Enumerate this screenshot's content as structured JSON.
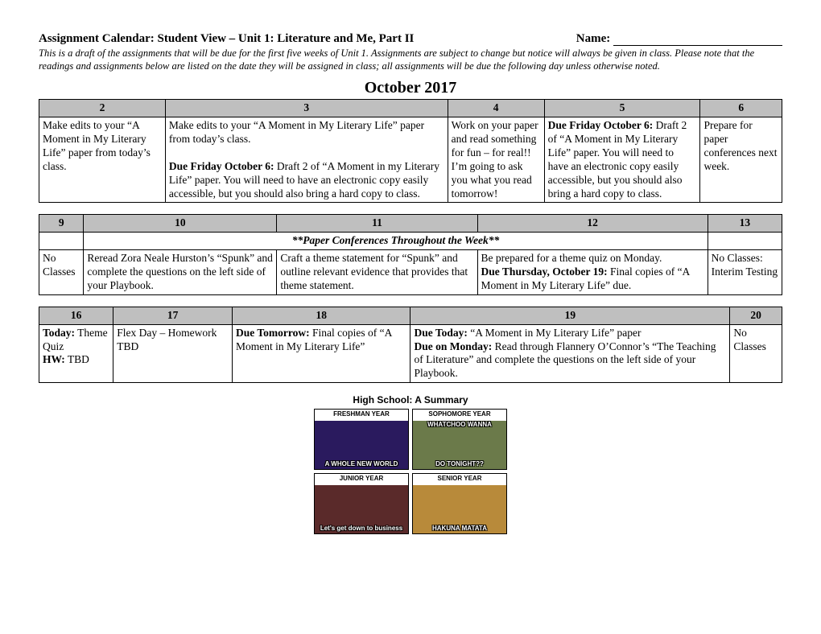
{
  "header": {
    "title": "Assignment Calendar: Student View – Unit 1: Literature and Me, Part II",
    "name_label": "Name:"
  },
  "intro": "This is a draft of the assignments that will be due for the first five weeks of Unit 1.  Assignments are subject to change but notice will always be given in class. Please note that the readings and assignments below are listed on the date they will be assigned in class; all assignments will be due the following day unless otherwise noted.",
  "month": "October 2017",
  "week1": {
    "col_widths": [
      "17%",
      "38%",
      "13%",
      "21%",
      "11%"
    ],
    "days": [
      "2",
      "3",
      "4",
      "5",
      "6"
    ],
    "cells": {
      "c2": "Make edits to your “A Moment in My Literary Life” paper from today’s class.",
      "c3a": "Make edits to your “A Moment in My Literary Life” paper from today’s class.",
      "c3b_bold": "Due Friday October 6:",
      "c3b_rest": " Draft 2 of “A Moment in my Literary Life” paper.  You will need to have an electronic copy easily accessible, but you should also bring a hard copy to class.",
      "c4": "Work on your paper and read something for fun – for real!!  I’m going to ask you what you read tomorrow!",
      "c5_bold": "Due Friday October 6:",
      "c5_rest": " Draft 2 of “A Moment in My Literary Life” paper. You will need to have an electronic copy easily accessible, but you should also bring a hard copy to class.",
      "c6": "Prepare for paper conferences next week."
    }
  },
  "week2": {
    "col_widths": [
      "6%",
      "26%",
      "27%",
      "31%",
      "10%"
    ],
    "days": [
      "9",
      "10",
      "11",
      "12",
      "13"
    ],
    "banner": "**Paper Conferences Throughout the Week**",
    "cells": {
      "c9": "No Classes",
      "c10": "Reread Zora Neale Hurston’s “Spunk” and complete the questions on the left side of your Playbook.",
      "c11": "Craft a theme statement for “Spunk” and outline relevant evidence that provides that theme statement.",
      "c12a": "Be prepared for a theme quiz on Monday.",
      "c12b_bold": "Due Thursday, October 19:",
      "c12b_rest": " Final copies of “A Moment in My Literary Life” due.",
      "c13": "No Classes: Interim Testing"
    }
  },
  "week3": {
    "col_widths": [
      "10%",
      "16%",
      "24%",
      "43%",
      "7%"
    ],
    "days": [
      "16",
      "17",
      "18",
      "19",
      "20"
    ],
    "cells": {
      "c16_today": "Today:",
      "c16_today_rest": " Theme Quiz",
      "c16_hw": "HW:",
      "c16_hw_rest": " TBD",
      "c17": "Flex Day – Homework TBD",
      "c18_bold": "Due Tomorrow:",
      "c18_rest": " Final copies of “A Moment in My Literary Life”",
      "c19a_bold": "Due Today:",
      "c19a_rest": " “A Moment in My Literary Life” paper",
      "c19b_bold": "Due on Monday:",
      "c19b_rest": " Read through Flannery O’Connor’s “The Teaching of Literature” and complete the questions on the left side of your Playbook.",
      "c20": "No Classes"
    }
  },
  "meme": {
    "title": "High School: A Summary",
    "panels": [
      {
        "label": "FRESHMAN YEAR",
        "bg": "#2a1a5e",
        "cap_bot": "A WHOLE NEW WORLD"
      },
      {
        "label": "SOPHOMORE YEAR",
        "bg": "#6b7a4a",
        "cap_top": "WHATCHOO WANNA",
        "cap_bot": "DO TONIGHT??"
      },
      {
        "label": "JUNIOR YEAR",
        "bg": "#5a2a2a",
        "cap_bot": "Let's get down to business"
      },
      {
        "label": "SENIOR YEAR",
        "bg": "#b88a3a",
        "cap_bot": "HAKUNA MATATA"
      }
    ]
  }
}
